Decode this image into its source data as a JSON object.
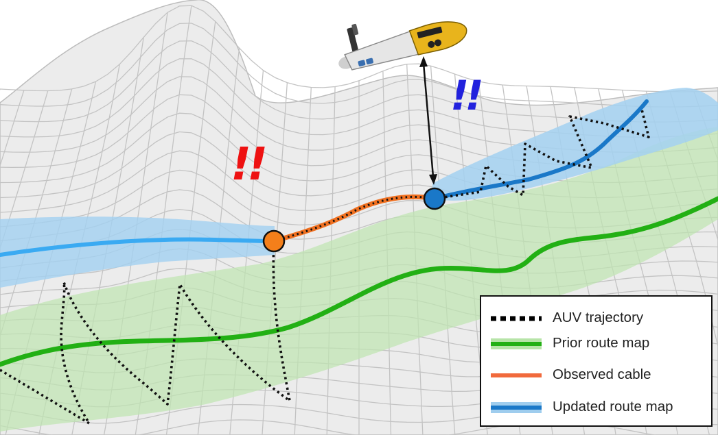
{
  "legend": {
    "items": [
      {
        "label": "AUV trajectory",
        "kind": "dotted",
        "color": "#000000"
      },
      {
        "label": "Prior route map",
        "kind": "band-line",
        "color": "#22b014",
        "band_color": "#b7e4a8"
      },
      {
        "label": "Observed cable",
        "kind": "line",
        "color": "#f16a3c"
      },
      {
        "label": "Updated route map",
        "kind": "band-line",
        "color": "#1a78c8",
        "band_color": "#9fcdee"
      }
    ]
  },
  "markers": {
    "alert_left": {
      "text": "!!",
      "color": "#ee1111"
    },
    "alert_right": {
      "text": "!!",
      "color": "#2222dd"
    }
  },
  "colors": {
    "terrain_line": "#c3c3c3",
    "terrain_fill": "#e8e8e8",
    "prior_route": "#22b014",
    "prior_band": "#b7e4a8",
    "updated_route": "#1a78c8",
    "updated_route_light": "#3aaaf2",
    "updated_band": "#a3d1f1",
    "observed_cable": "#f07020",
    "start_node": "#f47f1a",
    "end_node": "#1a78c8",
    "auv_body": "#e8e8e8",
    "auv_nose": "#e8b41c"
  }
}
